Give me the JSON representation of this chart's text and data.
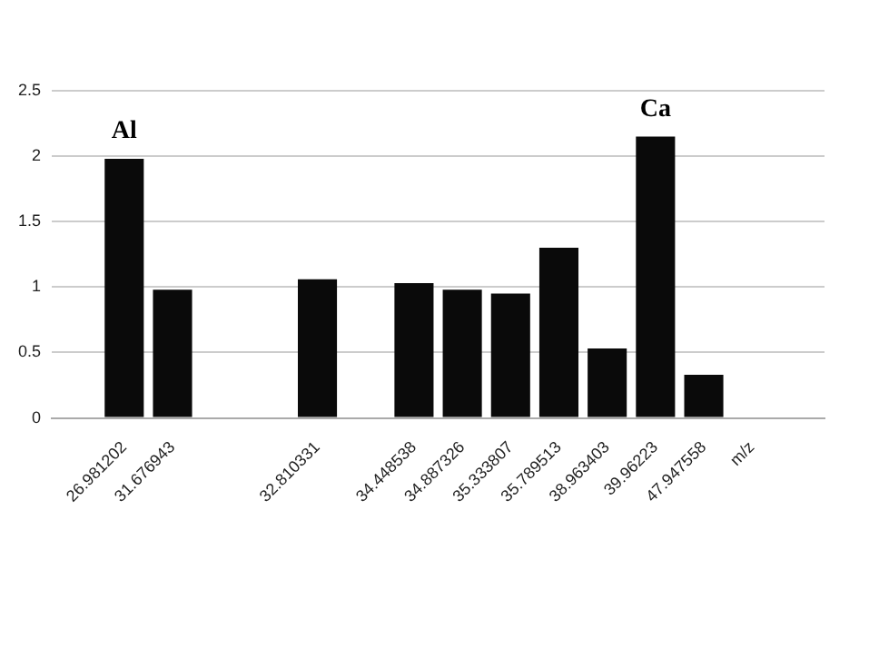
{
  "chart_data": {
    "type": "bar",
    "categories": [
      null,
      "26.981202",
      "31.676943",
      null,
      null,
      "32.810331",
      null,
      "34.448538",
      "34.887326",
      "35.333807",
      "35.789513",
      "38.963403",
      "39.96223",
      "47.947558",
      "m/z",
      null
    ],
    "values": [
      null,
      1.98,
      0.98,
      null,
      null,
      1.06,
      null,
      1.03,
      0.98,
      0.95,
      1.3,
      0.53,
      2.15,
      0.33,
      null,
      null
    ],
    "color": "#0a0a0a",
    "ylim": [
      0,
      2.5
    ],
    "yticks": [
      0,
      0.5,
      1,
      1.5,
      2,
      2.5
    ],
    "grid": "y",
    "legend": false,
    "annotations": [
      {
        "text": "Al",
        "x": "26.981202",
        "y": 1.98
      },
      {
        "text": "Ca",
        "x": "39.96223",
        "y": 2.15
      }
    ]
  }
}
